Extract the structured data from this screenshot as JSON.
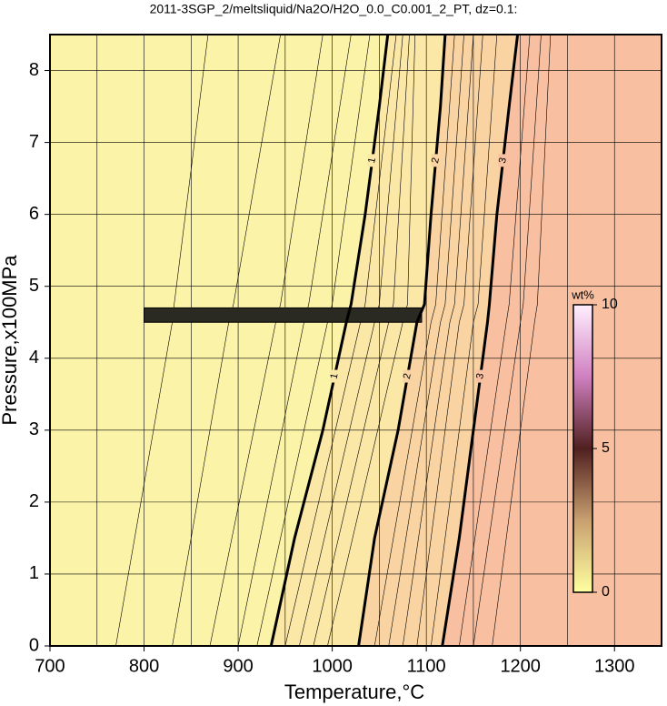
{
  "chart_data": {
    "type": "contour",
    "title": "2011-3SGP_2/meltsliquid/Na2O/H2O_0.0_C0.001_2_PT, dz=0.1:",
    "x_label": "Temperature,°C",
    "y_label": "Pressure,x100MPa",
    "xlim": [
      700,
      1350
    ],
    "ylim": [
      0,
      8.5
    ],
    "xticks": [
      700,
      800,
      900,
      1000,
      1100,
      1200,
      1300
    ],
    "xminor": [
      750,
      850,
      950,
      1050,
      1150,
      1250
    ],
    "yticks": [
      0,
      1,
      2,
      3,
      4,
      5,
      6,
      7,
      8
    ],
    "grid": true,
    "background": "#fbf3a8",
    "pressures": [
      0,
      1.5,
      3,
      4.5,
      4.75,
      6,
      7.5,
      8.5
    ],
    "series": [
      {
        "name": "1",
        "color": "#000000",
        "fill": "#fbe7a6",
        "values": [
          935,
          960,
          990,
          1015,
          1020,
          1035,
          1050,
          1059
        ]
      },
      {
        "name": "2",
        "color": "#000000",
        "fill": "#f9d4a2",
        "values": [
          1028,
          1045,
          1070,
          1090,
          1098,
          1105,
          1115,
          1120
        ]
      },
      {
        "name": "3",
        "color": "#000000",
        "fill": "#f8bfa0",
        "values": [
          1117,
          1135,
          1150,
          1165,
          1167,
          1175,
          1188,
          1197
        ]
      }
    ],
    "thin_pressures": [
      0,
      4.5,
      4.75,
      8.5
    ],
    "thin_contours": [
      [
        770,
        830,
        832,
        868
      ],
      [
        830,
        890,
        895,
        945
      ],
      [
        870,
        940,
        945,
        990
      ],
      [
        900,
        970,
        975,
        1020
      ],
      [
        920,
        995,
        1000,
        1040
      ],
      [
        950,
        1030,
        1035,
        1068
      ],
      [
        965,
        1045,
        1050,
        1075
      ],
      [
        980,
        1060,
        1065,
        1082
      ],
      [
        995,
        1075,
        1080,
        1088
      ],
      [
        1045,
        1105,
        1110,
        1130
      ],
      [
        1060,
        1115,
        1120,
        1140
      ],
      [
        1075,
        1125,
        1130,
        1150
      ],
      [
        1090,
        1135,
        1140,
        1160
      ],
      [
        1105,
        1150,
        1155,
        1175
      ],
      [
        1135,
        1185,
        1188,
        1210
      ],
      [
        1150,
        1200,
        1203,
        1222
      ],
      [
        1170,
        1215,
        1218,
        1232
      ]
    ],
    "colorbar": {
      "label": "wt%",
      "lim": [
        0,
        10
      ],
      "ticks": [
        0,
        5,
        10
      ]
    }
  }
}
